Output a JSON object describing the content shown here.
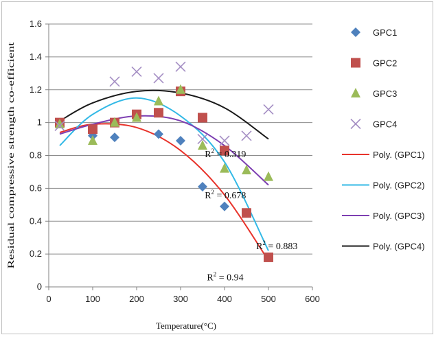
{
  "chart_data": {
    "type": "scatter",
    "xlabel": "Temperature(°C)",
    "ylabel": "Residual compressive strength co-efficient",
    "xlim": [
      0,
      600
    ],
    "ylim": [
      0,
      1.6
    ],
    "x_ticks": [
      "0",
      "100",
      "200",
      "300",
      "400",
      "500",
      "600"
    ],
    "y_ticks": [
      "0",
      "0.2",
      "0.4",
      "0.6",
      "0.8",
      "1",
      "1.2",
      "1.4",
      "1.6"
    ],
    "grid": "horizontal",
    "legend_position": "right",
    "series": [
      {
        "name": "GPC1",
        "marker": "diamond",
        "color": "#4f81bd",
        "points": [
          [
            25,
            1.0
          ],
          [
            100,
            0.92
          ],
          [
            150,
            0.91
          ],
          [
            250,
            0.93
          ],
          [
            300,
            0.89
          ],
          [
            350,
            0.61
          ],
          [
            400,
            0.49
          ],
          [
            450,
            0.45
          ],
          [
            500,
            0.18
          ]
        ]
      },
      {
        "name": "GPC2",
        "marker": "square",
        "color": "#c0504d",
        "points": [
          [
            25,
            1.0
          ],
          [
            100,
            0.96
          ],
          [
            150,
            1.0
          ],
          [
            200,
            1.05
          ],
          [
            250,
            1.06
          ],
          [
            300,
            1.19
          ],
          [
            350,
            1.03
          ],
          [
            400,
            0.83
          ],
          [
            450,
            0.45
          ],
          [
            500,
            0.18
          ]
        ]
      },
      {
        "name": "GPC3",
        "marker": "triangle",
        "color": "#9bbb59",
        "points": [
          [
            25,
            0.99
          ],
          [
            100,
            0.89
          ],
          [
            150,
            1.0
          ],
          [
            200,
            1.03
          ],
          [
            250,
            1.13
          ],
          [
            300,
            1.2
          ],
          [
            350,
            0.86
          ],
          [
            400,
            0.72
          ],
          [
            450,
            0.71
          ],
          [
            500,
            0.67
          ]
        ]
      },
      {
        "name": "GPC4",
        "marker": "x",
        "color": "#a58fc4",
        "points": [
          [
            25,
            0.98
          ],
          [
            150,
            1.25
          ],
          [
            200,
            1.31
          ],
          [
            250,
            1.27
          ],
          [
            300,
            1.34
          ],
          [
            350,
            0.9
          ],
          [
            400,
            0.89
          ],
          [
            450,
            0.92
          ],
          [
            500,
            1.08
          ]
        ]
      }
    ],
    "trendlines": [
      {
        "name": "Poly. (GPC1)",
        "color": "#e8332b",
        "x_range": [
          25,
          500
        ],
        "points": [
          [
            25,
            0.94
          ],
          [
            100,
            0.99
          ],
          [
            200,
            0.97
          ],
          [
            300,
            0.83
          ],
          [
            400,
            0.56
          ],
          [
            500,
            0.16
          ]
        ]
      },
      {
        "name": "Poly. (GPC2)",
        "color": "#33b9e6",
        "x_range": [
          25,
          500
        ],
        "points": [
          [
            25,
            0.86
          ],
          [
            100,
            1.05
          ],
          [
            200,
            1.15
          ],
          [
            300,
            1.04
          ],
          [
            400,
            0.76
          ],
          [
            500,
            0.22
          ]
        ]
      },
      {
        "name": "Poly. (GPC3)",
        "color": "#7d3fb2",
        "x_range": [
          25,
          500
        ],
        "points": [
          [
            25,
            0.93
          ],
          [
            100,
            0.99
          ],
          [
            200,
            1.04
          ],
          [
            300,
            1.01
          ],
          [
            400,
            0.86
          ],
          [
            500,
            0.62
          ]
        ]
      },
      {
        "name": "Poly. (GPC4)",
        "color": "#1a1a1a",
        "x_range": [
          25,
          500
        ],
        "points": [
          [
            25,
            1.01
          ],
          [
            100,
            1.12
          ],
          [
            200,
            1.19
          ],
          [
            300,
            1.18
          ],
          [
            400,
            1.09
          ],
          [
            500,
            0.9
          ]
        ]
      }
    ],
    "annotations": [
      {
        "r_label": "R",
        "sup": "2",
        "value": " = 0.319",
        "x": 355,
        "y": 0.81
      },
      {
        "r_label": "R",
        "sup": "2",
        "value": " = 0.678",
        "x": 355,
        "y": 0.56
      },
      {
        "r_label": "R",
        "sup": "2",
        "value": " = 0.883",
        "x": 472,
        "y": 0.25
      },
      {
        "r_label": "R",
        "sup": "2",
        "value": " = 0.94",
        "x": 360,
        "y": 0.06
      }
    ]
  }
}
